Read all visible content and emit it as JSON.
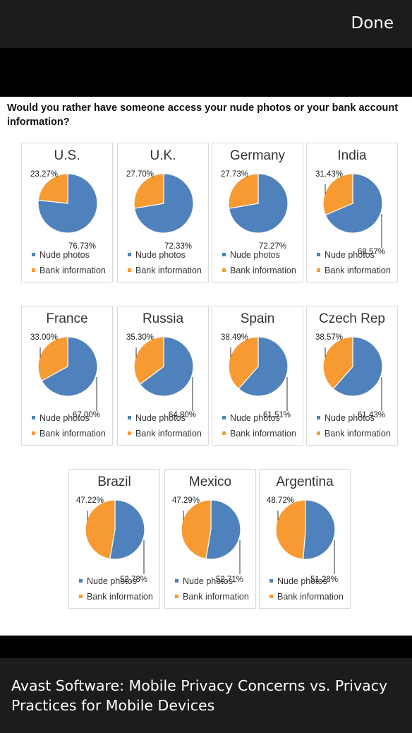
{
  "nav": {
    "done_label": "Done"
  },
  "image": {
    "question": "Would you rather have someone access your nude photos or your bank account information?",
    "legend": {
      "nude": "Nude photos",
      "bank": "Bank information"
    },
    "colors": {
      "nude": "#4f81bd",
      "bank": "#f79a32"
    }
  },
  "chart_data": [
    {
      "type": "pie",
      "title": "U.S.",
      "labels": [
        "Nude photos",
        "Bank information"
      ],
      "values": [
        76.73,
        23.27
      ],
      "value_labels": [
        "76.73%",
        "23.27%"
      ]
    },
    {
      "type": "pie",
      "title": "U.K.",
      "labels": [
        "Nude photos",
        "Bank information"
      ],
      "values": [
        72.33,
        27.7
      ],
      "value_labels": [
        "72.33%",
        "27.70%"
      ]
    },
    {
      "type": "pie",
      "title": "Germany",
      "labels": [
        "Nude photos",
        "Bank information"
      ],
      "values": [
        72.27,
        27.73
      ],
      "value_labels": [
        "72.27%",
        "27.73%"
      ]
    },
    {
      "type": "pie",
      "title": "India",
      "labels": [
        "Nude photos",
        "Bank information"
      ],
      "values": [
        68.57,
        31.43
      ],
      "value_labels": [
        "68.57%",
        "31.43%"
      ]
    },
    {
      "type": "pie",
      "title": "France",
      "labels": [
        "Nude photos",
        "Bank information"
      ],
      "values": [
        67.0,
        33.0
      ],
      "value_labels": [
        "67.00%",
        "33.00%"
      ]
    },
    {
      "type": "pie",
      "title": "Russia",
      "labels": [
        "Nude photos",
        "Bank information"
      ],
      "values": [
        64.8,
        35.3
      ],
      "value_labels": [
        "64.80%",
        "35.30%"
      ]
    },
    {
      "type": "pie",
      "title": "Spain",
      "labels": [
        "Nude photos",
        "Bank information"
      ],
      "values": [
        61.51,
        38.49
      ],
      "value_labels": [
        "61.51%",
        "38.49%"
      ]
    },
    {
      "type": "pie",
      "title": "Czech Rep",
      "labels": [
        "Nude photos",
        "Bank information"
      ],
      "values": [
        61.43,
        38.57
      ],
      "value_labels": [
        "61.43%",
        "38.57%"
      ]
    },
    {
      "type": "pie",
      "title": "Brazil",
      "labels": [
        "Nude photos",
        "Bank information"
      ],
      "values": [
        52.78,
        47.22
      ],
      "value_labels": [
        "52.78%",
        "47.22%"
      ]
    },
    {
      "type": "pie",
      "title": "Mexico",
      "labels": [
        "Nude photos",
        "Bank information"
      ],
      "values": [
        52.71,
        47.29
      ],
      "value_labels": [
        "52.71%",
        "47.29%"
      ]
    },
    {
      "type": "pie",
      "title": "Argentina",
      "labels": [
        "Nude photos",
        "Bank information"
      ],
      "values": [
        51.28,
        48.72
      ],
      "value_labels": [
        "51.28%",
        "48.72%"
      ]
    }
  ],
  "caption": {
    "text": "Avast Software: Mobile Privacy Concerns vs. Privacy Practices for Mobile Devices"
  }
}
